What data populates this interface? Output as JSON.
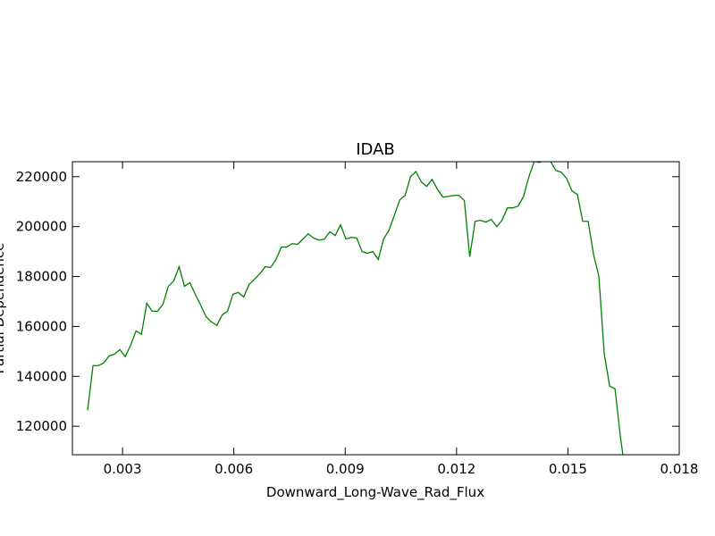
{
  "chart_data": {
    "type": "line",
    "title": "IDAB",
    "xlabel": "Downward_Long-Wave_Rad_Flux",
    "ylabel": "Partial Dependence",
    "x": [
      0.00206,
      0.002205,
      0.00235,
      0.002495,
      0.00264,
      0.002785,
      0.00293,
      0.003075,
      0.00322,
      0.003365,
      0.00351,
      0.003655,
      0.0038,
      0.003945,
      0.00409,
      0.004235,
      0.00438,
      0.004525,
      0.00467,
      0.004815,
      0.00496,
      0.005105,
      0.00525,
      0.005395,
      0.00554,
      0.005685,
      0.00583,
      0.005975,
      0.00612,
      0.006265,
      0.00641,
      0.006555,
      0.0067,
      0.006845,
      0.00699,
      0.007135,
      0.00728,
      0.007425,
      0.00757,
      0.007715,
      0.00786,
      0.008005,
      0.00815,
      0.008295,
      0.00844,
      0.008585,
      0.00873,
      0.008875,
      0.00902,
      0.009165,
      0.00931,
      0.009455,
      0.0096,
      0.009745,
      0.00989,
      0.010035,
      0.01018,
      0.010325,
      0.01047,
      0.010615,
      0.01076,
      0.010905,
      0.01105,
      0.011195,
      0.01134,
      0.011485,
      0.01163,
      0.011775,
      0.01192,
      0.012065,
      0.01221,
      0.012355,
      0.0125,
      0.012645,
      0.01279,
      0.012935,
      0.01308,
      0.013225,
      0.01337,
      0.013515,
      0.01366,
      0.013805,
      0.01395,
      0.014095,
      0.01424,
      0.014385,
      0.01453,
      0.014675,
      0.01482,
      0.014965,
      0.01511,
      0.015255,
      0.0154,
      0.015545,
      0.01569,
      0.015835,
      0.01598,
      0.016125,
      0.01627,
      0.016415,
      0.01656
    ],
    "series": [
      {
        "name": "IDAB",
        "color": "#008000",
        "values": [
          126400,
          144300,
          144300,
          145400,
          148200,
          148900,
          150700,
          147900,
          152500,
          158200,
          156800,
          169300,
          166100,
          166100,
          168900,
          176100,
          178200,
          183900,
          176100,
          177500,
          172900,
          168600,
          163900,
          161800,
          160400,
          164600,
          166100,
          172900,
          173600,
          171800,
          176800,
          178900,
          181100,
          183900,
          183600,
          186800,
          191800,
          191800,
          193200,
          192900,
          195000,
          197100,
          195400,
          194600,
          195000,
          197900,
          196400,
          200700,
          195000,
          195700,
          195400,
          190000,
          189300,
          190000,
          186800,
          195000,
          198600,
          204600,
          210700,
          212500,
          220000,
          222100,
          217900,
          216100,
          218900,
          215000,
          211800,
          212100,
          212500,
          212500,
          210400,
          187900,
          202100,
          202500,
          201800,
          202900,
          200000,
          202500,
          207500,
          207500,
          208200,
          212100,
          220000,
          226100,
          225700,
          226800,
          226100,
          222500,
          221800,
          219300,
          214300,
          212900,
          202100,
          202100,
          188900,
          180000,
          148900,
          136100,
          135000,
          115700,
          100000
        ]
      }
    ],
    "xlim": [
      0.00165,
      0.018
    ],
    "ylim": [
      108600,
      226000
    ],
    "xticks": [
      0.003,
      0.006,
      0.009,
      0.012,
      0.015,
      0.018
    ],
    "yticks": [
      120000,
      140000,
      160000,
      180000,
      200000,
      220000
    ]
  }
}
